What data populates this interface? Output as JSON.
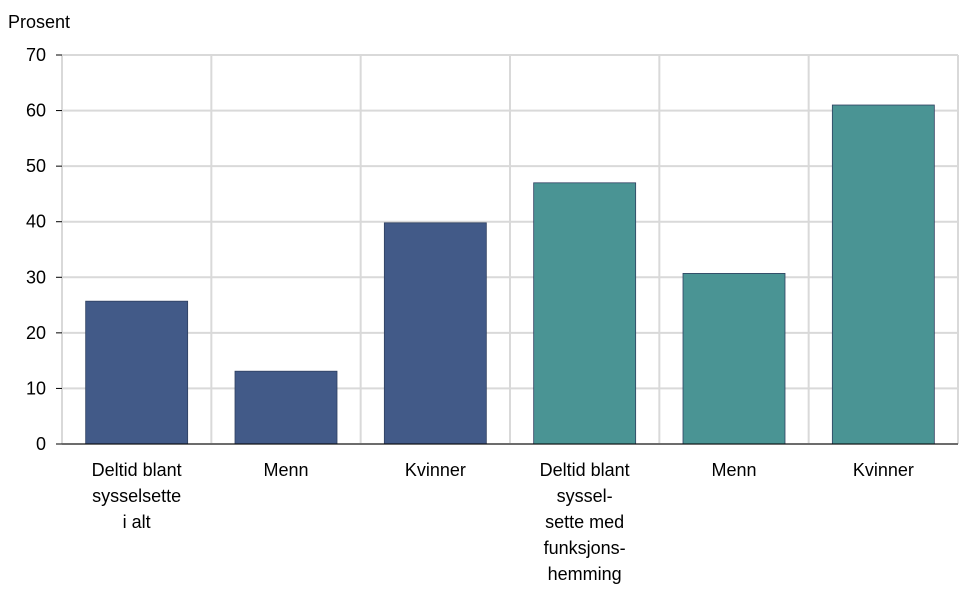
{
  "chart_data": {
    "type": "bar",
    "ylabel": "Prosent",
    "ylim": [
      0,
      70
    ],
    "yticks": [
      0,
      10,
      20,
      30,
      40,
      50,
      60,
      70
    ],
    "grid": true,
    "categories": [
      [
        "Deltid blant",
        "sysselsette",
        "i alt"
      ],
      [
        "Menn"
      ],
      [
        "Kvinner"
      ],
      [
        "Deltid blant",
        "syssel-",
        "sette med",
        "funksjons-",
        "hemming"
      ],
      [
        "Menn"
      ],
      [
        "Kvinner"
      ]
    ],
    "values": [
      25.7,
      13.1,
      39.8,
      47.0,
      30.7,
      61.0
    ],
    "colors": [
      "#425a88",
      "#425a88",
      "#425a88",
      "#4a9494",
      "#4a9494",
      "#4a9494"
    ]
  }
}
